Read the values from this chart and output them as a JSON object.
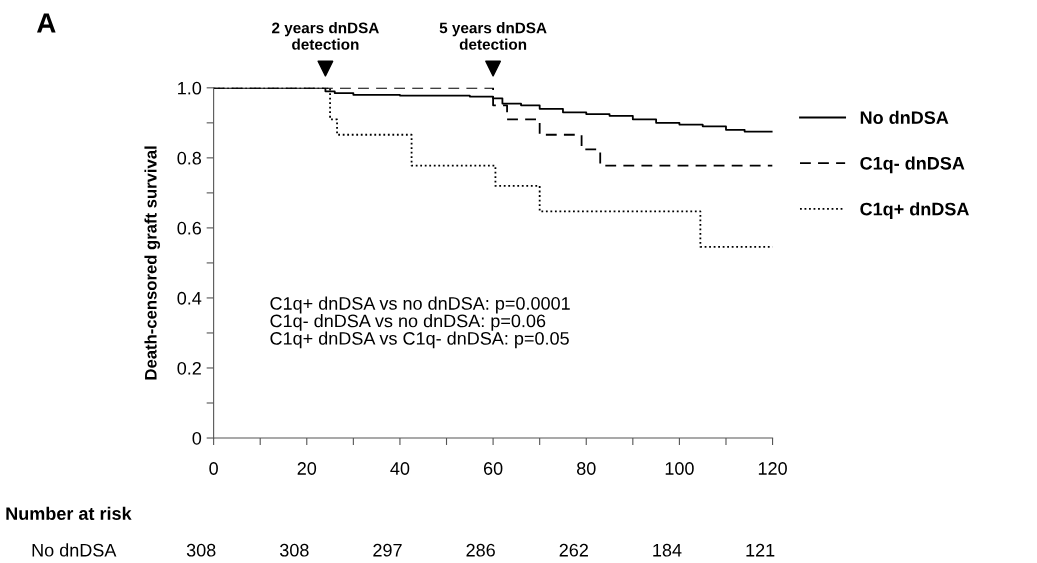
{
  "chart_data": {
    "type": "step",
    "ylabel": "Death-censored graft survival",
    "xlim": [
      0,
      120
    ],
    "xticks": [
      0,
      {
        "value": 10,
        "label": null
      },
      20,
      {
        "value": 30,
        "label": null
      },
      40,
      {
        "value": 50,
        "label": null
      },
      60,
      {
        "value": 70,
        "label": null
      },
      80,
      {
        "value": 90,
        "label": null
      },
      100,
      {
        "value": 110,
        "label": null
      },
      120
    ],
    "ylim": [
      0,
      1.0
    ],
    "yticks": [
      0,
      {
        "value": 0.1,
        "label": null
      },
      0.2,
      {
        "value": 0.3,
        "label": null
      },
      0.4,
      {
        "value": 0.5,
        "label": null
      },
      0.6,
      {
        "value": 0.7,
        "label": null
      },
      0.8,
      {
        "value": 0.9,
        "label": null
      },
      {
        "value": 1.0,
        "label": "1.0"
      }
    ],
    "grid": false,
    "legend": "right",
    "series": [
      {
        "name": "No dnDSA",
        "color": "#000000",
        "line_style": "solid",
        "x": [
          0,
          24,
          26,
          30,
          40,
          55,
          60,
          62,
          66,
          70,
          75,
          80,
          85,
          90,
          95,
          100,
          105,
          110,
          114,
          120
        ],
        "values": [
          1.0,
          0.99,
          0.985,
          0.98,
          0.978,
          0.975,
          0.97,
          0.955,
          0.95,
          0.94,
          0.93,
          0.925,
          0.92,
          0.91,
          0.9,
          0.895,
          0.89,
          0.88,
          0.875,
          0.875
        ]
      },
      {
        "name": "C1q- dnDSA",
        "color": "#000000",
        "line_style": "dashed",
        "x": [
          0,
          60,
          63,
          70,
          79,
          83,
          120
        ],
        "values": [
          1.0,
          0.95,
          0.91,
          0.866,
          0.824,
          0.778,
          0.778
        ]
      },
      {
        "name": "C1q+ dnDSA",
        "color": "#000000",
        "line_style": "dotted",
        "x": [
          0,
          25,
          26.5,
          42.5,
          60.5,
          70,
          104.5,
          120
        ],
        "values": [
          1.0,
          0.91,
          0.866,
          0.778,
          0.72,
          0.647,
          0.546,
          0.546
        ]
      }
    ],
    "annotations": [
      "A",
      {
        "text": "2 years dnDSA\ndetection",
        "x": 24,
        "y": 1.0
      },
      {
        "text": "5 years dnDSA\ndetection",
        "x": 60,
        "y": 1.0
      },
      "C1q+ dnDSA vs no dnDSA: p=0.0001\nC1q- dnDSA vs no dnDSA: p=0.06\nC1q+ dnDSA vs C1q- dnDSA: p=0.05",
      "Number at risk",
      "No dnDSA",
      "308",
      "308",
      "297",
      "286",
      "262",
      "184",
      "121"
    ]
  }
}
